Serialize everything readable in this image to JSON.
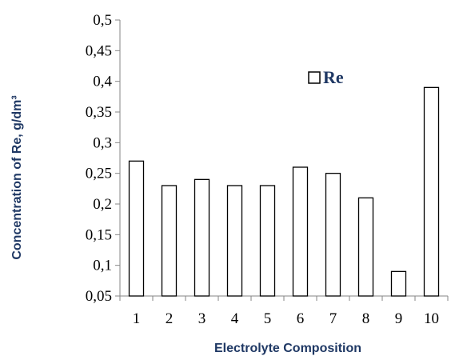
{
  "chart_data": {
    "type": "bar",
    "title": "",
    "xlabel": "Electrolyte Composition",
    "ylabel": "Concentration of Re, g/dm³",
    "categories": [
      "1",
      "2",
      "3",
      "4",
      "5",
      "6",
      "7",
      "8",
      "9",
      "10"
    ],
    "series": [
      {
        "name": "Re",
        "values": [
          0.27,
          0.23,
          0.24,
          0.23,
          0.23,
          0.26,
          0.25,
          0.21,
          0.09,
          0.39
        ]
      }
    ],
    "ylim": [
      0.05,
      0.5
    ],
    "yticks": [
      "0,05",
      "0,1",
      "0,15",
      "0,2",
      "0,25",
      "0,3",
      "0,35",
      "0,4",
      "0,45",
      "0,5"
    ],
    "grid": false,
    "legend": "top-center",
    "colors": {
      "bar_fill": "#ffffff",
      "bar_stroke": "#000000",
      "axis_title": "#1f3864",
      "legend_text": "#1f3864"
    }
  }
}
